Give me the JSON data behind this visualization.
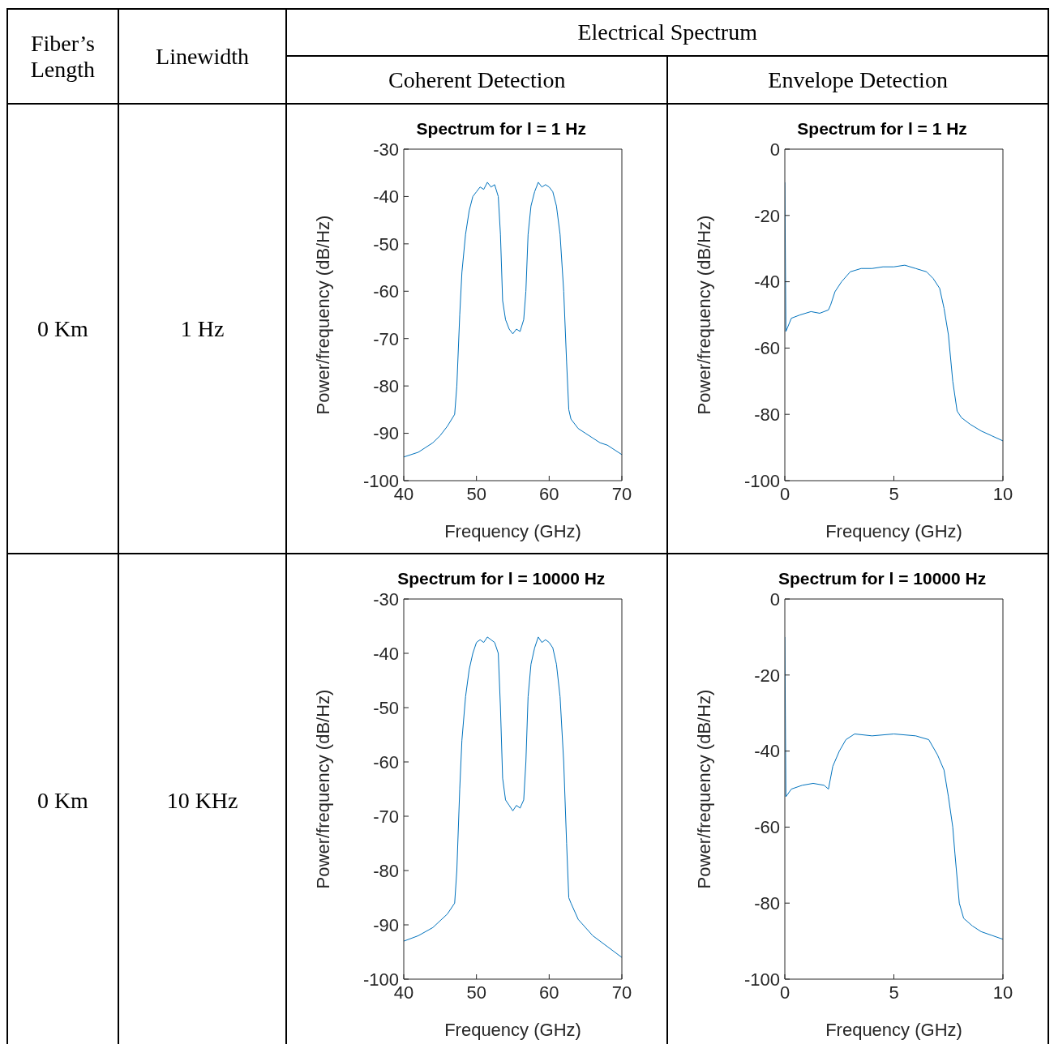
{
  "chart_data": [
    {
      "type": "other",
      "annotations": [
        "Fiber’s Length",
        "Linewidth",
        "Electrical Spectrum",
        "Coherent Detection",
        "Envelope Detection",
        "0 Km",
        "1 Hz",
        "0 Km",
        "10 KHz"
      ]
    },
    {
      "type": "line",
      "title": "Spectrum for l = 1 Hz",
      "xlabel": "Frequency (GHz)",
      "ylabel": "Power/frequency (dB/Hz)",
      "xlim": [
        40,
        70
      ],
      "xticks": [
        40,
        50,
        60,
        70
      ],
      "ylim": [
        -100,
        -30
      ],
      "yticks": [
        -100,
        -90,
        -80,
        -70,
        -60,
        -50,
        -40,
        -30
      ],
      "series": [
        {
          "color": "#0072bd",
          "x": [
            40,
            41,
            42,
            43,
            44,
            45,
            46,
            47,
            47.3,
            47.7,
            48,
            48.5,
            49,
            49.5,
            50,
            50.5,
            51,
            51.5,
            52,
            52.5,
            53,
            53.3,
            53.6,
            54,
            54.5,
            55,
            55.5,
            56,
            56.5,
            56.8,
            57.1,
            57.5,
            58,
            58.5,
            59,
            59.5,
            60,
            60.5,
            61,
            61.5,
            62,
            62.4,
            62.7,
            63,
            64,
            65,
            66,
            67,
            68,
            69,
            70
          ],
          "values": [
            -95,
            -94.5,
            -94,
            -93,
            -92,
            -90.5,
            -88.5,
            -86,
            -80,
            -65,
            -56,
            -48,
            -43,
            -40,
            -39,
            -38,
            -38.5,
            -37,
            -38,
            -37.5,
            -40,
            -48,
            -62,
            -66,
            -68,
            -69,
            -68,
            -68.5,
            -66,
            -60,
            -48,
            -42,
            -39,
            -37,
            -38,
            -37.5,
            -38,
            -39,
            -42,
            -48,
            -60,
            -75,
            -85,
            -87,
            -89,
            -90,
            -91,
            -92,
            -92.5,
            -93.5,
            -94.5
          ]
        }
      ]
    },
    {
      "type": "line",
      "title": "Spectrum for l = 1 Hz",
      "xlabel": "Frequency (GHz)",
      "ylabel": "Power/frequency (dB/Hz)",
      "xlim": [
        0,
        10
      ],
      "xticks": [
        0,
        5,
        10
      ],
      "ylim": [
        -100,
        0
      ],
      "yticks": [
        -100,
        -80,
        -60,
        -40,
        -20,
        0
      ],
      "series": [
        {
          "color": "#0072bd",
          "x": [
            0,
            0.05,
            0.3,
            0.7,
            1.2,
            1.6,
            2,
            2.1,
            2.3,
            2.6,
            3,
            3.5,
            4,
            4.5,
            5,
            5.5,
            6,
            6.5,
            6.8,
            7.1,
            7.3,
            7.5,
            7.7,
            7.9,
            8.1,
            8.5,
            9,
            9.5,
            10
          ],
          "values": [
            -10,
            -55,
            -51,
            -50,
            -49,
            -49.5,
            -48.5,
            -47,
            -43,
            -40,
            -37,
            -36,
            -36,
            -35.5,
            -35.5,
            -35,
            -36,
            -37,
            -39,
            -42,
            -48,
            -56,
            -70,
            -79,
            -81,
            -83,
            -85,
            -86.5,
            -88
          ]
        }
      ]
    },
    {
      "type": "line",
      "title": "Spectrum for l = 10000 Hz",
      "xlabel": "Frequency (GHz)",
      "ylabel": "Power/frequency (dB/Hz)",
      "xlim": [
        40,
        70
      ],
      "xticks": [
        40,
        50,
        60,
        70
      ],
      "ylim": [
        -100,
        -30
      ],
      "yticks": [
        -100,
        -90,
        -80,
        -70,
        -60,
        -50,
        -40,
        -30
      ],
      "series": [
        {
          "color": "#0072bd",
          "x": [
            40,
            42,
            44,
            46,
            47,
            47.3,
            47.7,
            48,
            48.5,
            49,
            49.5,
            50,
            50.5,
            51,
            51.5,
            52,
            52.5,
            53,
            53.3,
            53.6,
            54,
            54.5,
            55,
            55.5,
            56,
            56.5,
            56.8,
            57.1,
            57.5,
            58,
            58.5,
            59,
            59.5,
            60,
            60.5,
            61,
            61.5,
            62,
            62.4,
            62.7,
            63,
            64,
            66,
            68,
            70
          ],
          "values": [
            -93,
            -92,
            -90.5,
            -88,
            -86,
            -80,
            -65,
            -56,
            -48,
            -43,
            -40,
            -38,
            -37.5,
            -38,
            -37,
            -37.5,
            -38,
            -40,
            -50,
            -63,
            -67,
            -68,
            -69,
            -68,
            -68.5,
            -67,
            -60,
            -48,
            -42,
            -39,
            -37,
            -38,
            -37.5,
            -38,
            -39,
            -42,
            -48,
            -60,
            -75,
            -85,
            -86,
            -89,
            -92,
            -94,
            -96
          ]
        }
      ]
    },
    {
      "type": "line",
      "title": "Spectrum for l = 10000 Hz",
      "xlabel": "Frequency (GHz)",
      "ylabel": "Power/frequency (dB/Hz)",
      "xlim": [
        0,
        10
      ],
      "xticks": [
        0,
        5,
        10
      ],
      "ylim": [
        -100,
        0
      ],
      "yticks": [
        -100,
        -80,
        -60,
        -40,
        -20,
        0
      ],
      "series": [
        {
          "color": "#0072bd",
          "x": [
            0,
            0.05,
            0.3,
            0.8,
            1.3,
            1.8,
            2,
            2.2,
            2.5,
            2.8,
            3.2,
            4,
            5,
            6,
            6.6,
            7,
            7.3,
            7.5,
            7.7,
            7.8,
            8,
            8.2,
            8.6,
            9,
            9.5,
            10
          ],
          "values": [
            -10,
            -52,
            -50,
            -49,
            -48.5,
            -49,
            -50,
            -44,
            -40,
            -37,
            -35.5,
            -36,
            -35.5,
            -36,
            -37,
            -41,
            -45,
            -52,
            -60,
            -67,
            -80,
            -84,
            -86,
            -87.5,
            -88.5,
            -89.5
          ]
        }
      ]
    }
  ]
}
